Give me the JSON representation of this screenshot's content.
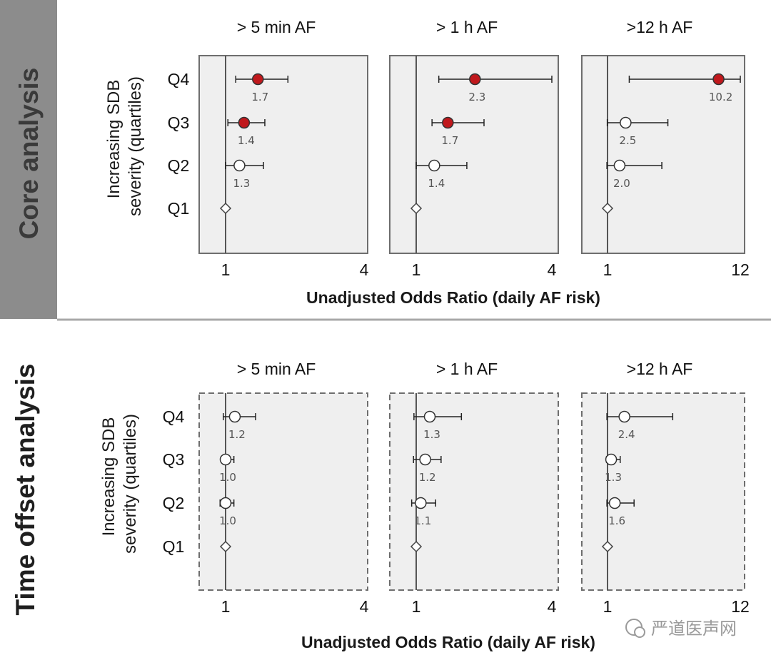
{
  "sections": [
    {
      "side_label": "Core analysis",
      "row_axis_title_line1": "Increasing SDB",
      "row_axis_title_line2": "severity (quartiles)",
      "x_axis_title": "Unadjusted Odds Ratio (daily AF risk)",
      "panel_border": "solid"
    },
    {
      "side_label": "Time offset analysis",
      "row_axis_title_line1": "Increasing SDB",
      "row_axis_title_line2": "severity (quartiles)",
      "x_axis_title": "Unadjusted Odds Ratio (daily AF risk)",
      "panel_border": "dashed"
    }
  ],
  "watermark": {
    "text": "严道医声网"
  },
  "colors": {
    "side_band": "#8c8c8c",
    "panel_fill": "#efefef",
    "panel_border": "#6e6e6e",
    "significant_marker": "#c0181c",
    "nonsignificant_marker": "#ffffff",
    "reference_line": "#555555",
    "divider": "#a8a8a8",
    "value_label": "#555555"
  },
  "chart_data": [
    {
      "type": "forest",
      "section": "Core analysis",
      "title": "> 5 min AF",
      "categories": [
        "Q4",
        "Q3",
        "Q2",
        "Q1"
      ],
      "x_ticks": [
        "1",
        "4"
      ],
      "xlim": [
        0.8,
        4
      ],
      "reference": 1,
      "points": [
        {
          "category": "Q4",
          "estimate": 1.7,
          "lower": 1.22,
          "upper": 2.35,
          "significant": true,
          "label": "1.7"
        },
        {
          "category": "Q3",
          "estimate": 1.4,
          "lower": 1.05,
          "upper": 1.85,
          "significant": true,
          "label": "1.4"
        },
        {
          "category": "Q2",
          "estimate": 1.3,
          "lower": 1.0,
          "upper": 1.82,
          "significant": false,
          "label": "1.3"
        },
        {
          "category": "Q1",
          "estimate": 1.0,
          "reference": true
        }
      ]
    },
    {
      "type": "forest",
      "section": "Core analysis",
      "title": "> 1 h AF",
      "categories": [
        "Q4",
        "Q3",
        "Q2",
        "Q1"
      ],
      "x_ticks": [
        "1",
        "4"
      ],
      "xlim": [
        0.8,
        4
      ],
      "reference": 1,
      "points": [
        {
          "category": "Q4",
          "estimate": 2.3,
          "lower": 1.5,
          "upper": 4.0,
          "significant": true,
          "label": "2.3"
        },
        {
          "category": "Q3",
          "estimate": 1.7,
          "lower": 1.35,
          "upper": 2.5,
          "significant": true,
          "label": "1.7"
        },
        {
          "category": "Q2",
          "estimate": 1.4,
          "lower": 1.0,
          "upper": 2.12,
          "significant": false,
          "label": "1.4"
        },
        {
          "category": "Q1",
          "estimate": 1.0,
          "reference": true
        }
      ]
    },
    {
      "type": "forest",
      "section": "Core analysis",
      "title": ">12 h AF",
      "categories": [
        "Q4",
        "Q3",
        "Q2",
        "Q1"
      ],
      "x_ticks": [
        "1",
        "12"
      ],
      "xlim": [
        0.75,
        12
      ],
      "reference": 1,
      "points": [
        {
          "category": "Q4",
          "estimate": 10.2,
          "lower": 2.8,
          "upper": 12.0,
          "significant": true,
          "label": "10.2"
        },
        {
          "category": "Q3",
          "estimate": 2.5,
          "lower": 0.98,
          "upper": 6.0,
          "significant": false,
          "label": "2.5"
        },
        {
          "category": "Q2",
          "estimate": 2.0,
          "lower": 0.95,
          "upper": 5.5,
          "significant": false,
          "label": "2.0"
        },
        {
          "category": "Q1",
          "estimate": 1.0,
          "reference": true
        }
      ]
    },
    {
      "type": "forest",
      "section": "Time offset analysis",
      "title": "> 5 min AF",
      "categories": [
        "Q4",
        "Q3",
        "Q2",
        "Q1"
      ],
      "x_ticks": [
        "1",
        "4"
      ],
      "xlim": [
        0.8,
        4
      ],
      "reference": 1,
      "points": [
        {
          "category": "Q4",
          "estimate": 1.2,
          "lower": 0.95,
          "upper": 1.65,
          "significant": false,
          "label": "1.2"
        },
        {
          "category": "Q3",
          "estimate": 1.0,
          "lower": 0.92,
          "upper": 1.18,
          "significant": false,
          "label": "1.0"
        },
        {
          "category": "Q2",
          "estimate": 1.0,
          "lower": 0.88,
          "upper": 1.18,
          "significant": false,
          "label": "1.0"
        },
        {
          "category": "Q1",
          "estimate": 1.0,
          "reference": true
        }
      ]
    },
    {
      "type": "forest",
      "section": "Time offset analysis",
      "title": "> 1 h AF",
      "categories": [
        "Q4",
        "Q3",
        "Q2",
        "Q1"
      ],
      "x_ticks": [
        "1",
        "4"
      ],
      "xlim": [
        0.8,
        4
      ],
      "reference": 1,
      "points": [
        {
          "category": "Q4",
          "estimate": 1.3,
          "lower": 0.95,
          "upper": 2.0,
          "significant": false,
          "label": "1.3"
        },
        {
          "category": "Q3",
          "estimate": 1.2,
          "lower": 0.94,
          "upper": 1.55,
          "significant": false,
          "label": "1.2"
        },
        {
          "category": "Q2",
          "estimate": 1.1,
          "lower": 0.9,
          "upper": 1.43,
          "significant": false,
          "label": "1.1"
        },
        {
          "category": "Q1",
          "estimate": 1.0,
          "reference": true
        }
      ]
    },
    {
      "type": "forest",
      "section": "Time offset analysis",
      "title": ">12 h AF",
      "categories": [
        "Q4",
        "Q3",
        "Q2",
        "Q1"
      ],
      "x_ticks": [
        "1",
        "12"
      ],
      "xlim": [
        0.75,
        12
      ],
      "reference": 1,
      "points": [
        {
          "category": "Q4",
          "estimate": 2.4,
          "lower": 0.95,
          "upper": 6.4,
          "significant": false,
          "label": "2.4"
        },
        {
          "category": "Q3",
          "estimate": 1.3,
          "lower": 0.92,
          "upper": 2.05,
          "significant": false,
          "label": "1.3"
        },
        {
          "category": "Q2",
          "estimate": 1.6,
          "lower": 0.95,
          "upper": 3.2,
          "significant": false,
          "label": "1.6"
        },
        {
          "category": "Q1",
          "estimate": 1.0,
          "reference": true
        }
      ]
    }
  ]
}
